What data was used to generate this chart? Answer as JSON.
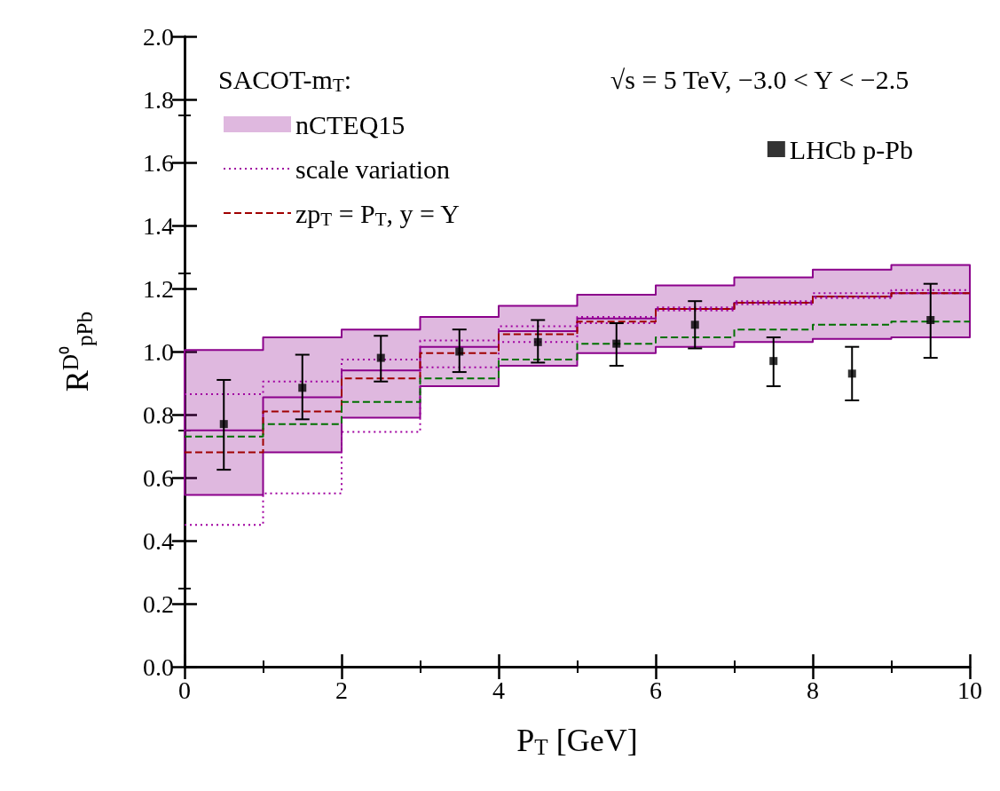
{
  "chart_data": {
    "type": "step",
    "xlabel": "P$_{T}$ [GeV]",
    "ylabel": "R$^{D⁰}$$_{pPb}$",
    "annotations": [
      "SACOT-m$_{T}$:",
      "√s = 5 TeV, −3.0 < Y < −2.5"
    ],
    "xlim": [
      0,
      10
    ],
    "xticks": [
      0,
      2,
      4,
      6,
      8,
      10
    ],
    "ylim": [
      0,
      2
    ],
    "yticks": [
      {
        "value": 0,
        "label": "0.0"
      },
      {
        "value": 0.2,
        "label": "0.2"
      },
      {
        "value": 0.4,
        "label": "0.4"
      },
      {
        "value": 0.6,
        "label": "0.6"
      },
      {
        "value": 0.8,
        "label": "0.8"
      },
      {
        "value": 1,
        "label": "1.0"
      },
      {
        "value": 1.2,
        "label": "1.2"
      },
      {
        "value": 1.4,
        "label": "1.4"
      },
      {
        "value": 1.6,
        "label": "1.6"
      },
      {
        "value": 1.8,
        "label": "1.8"
      },
      {
        "value": 2,
        "label": "2.0"
      }
    ],
    "grid": false,
    "legend": "top left",
    "series": [
      {
        "name": "nCTEQ15",
        "color": "#8b008b",
        "x": [
          0,
          1,
          2,
          3,
          4,
          5,
          6,
          7,
          8,
          9,
          10
        ],
        "values": [
          0.75,
          0.855,
          0.94,
          1.015,
          1.065,
          1.105,
          1.135,
          1.155,
          1.175,
          1.185,
          1.185
        ],
        "lower": [
          0.545,
          0.68,
          0.79,
          0.89,
          0.955,
          0.995,
          1.015,
          1.03,
          1.04,
          1.045,
          1.045
        ],
        "upper": [
          1.005,
          1.045,
          1.07,
          1.11,
          1.145,
          1.18,
          1.21,
          1.235,
          1.26,
          1.275,
          1.275
        ]
      },
      {
        "name": "scale variation",
        "color": "#a000a0",
        "line_style": "dotted",
        "x": [
          0,
          1,
          2,
          3,
          4,
          5,
          6,
          7,
          8,
          9,
          10
        ],
        "values": [
          0.865,
          0.905,
          0.975,
          1.035,
          1.08,
          1.11,
          1.14,
          1.16,
          1.185,
          1.195,
          1.195
        ]
      },
      {
        "color": "#a000a0",
        "line_style": "dotted",
        "x": [
          0,
          1,
          2,
          3,
          4,
          5,
          6,
          7,
          8,
          9,
          10
        ],
        "values": [
          0.45,
          0.55,
          0.745,
          0.95,
          1.03,
          1.09,
          1.13,
          1.15,
          1.17,
          1.185,
          1.185
        ]
      },
      {
        "name": "zp$_{T}$ = P$_{T}$, y = Y",
        "color": "#a00000",
        "line_style": "dashed",
        "x": [
          0,
          1,
          2,
          3,
          4,
          5,
          6,
          7,
          8,
          9,
          10
        ],
        "values": [
          0.68,
          0.81,
          0.915,
          0.995,
          1.055,
          1.095,
          1.135,
          1.155,
          1.175,
          1.185,
          1.185
        ]
      },
      {
        "color": "#007000",
        "line_style": "dashed",
        "x": [
          0,
          1,
          2,
          3,
          4,
          5,
          6,
          7,
          8,
          9,
          10
        ],
        "values": [
          0.73,
          0.77,
          0.84,
          0.915,
          0.975,
          1.025,
          1.045,
          1.07,
          1.085,
          1.095,
          1.095
        ]
      },
      {
        "name": "LHCb p-Pb",
        "type": "scatter",
        "marker": "square",
        "color": "#000000",
        "x": [
          0.5,
          1.5,
          2.5,
          3.5,
          4.5,
          5.5,
          6.5,
          7.5,
          8.5,
          9.5
        ],
        "values": [
          0.77,
          0.885,
          0.98,
          1.0,
          1.03,
          1.025,
          1.085,
          0.97,
          0.93,
          1.1
        ],
        "errors": [
          [
            0.625,
            0.91
          ],
          [
            0.785,
            0.99
          ],
          [
            0.905,
            1.05
          ],
          [
            0.935,
            1.07
          ],
          [
            0.965,
            1.1
          ],
          [
            0.955,
            1.09
          ],
          [
            1.01,
            1.16
          ],
          [
            0.89,
            1.045
          ],
          [
            0.845,
            1.015
          ],
          [
            0.98,
            1.215
          ]
        ]
      }
    ]
  }
}
